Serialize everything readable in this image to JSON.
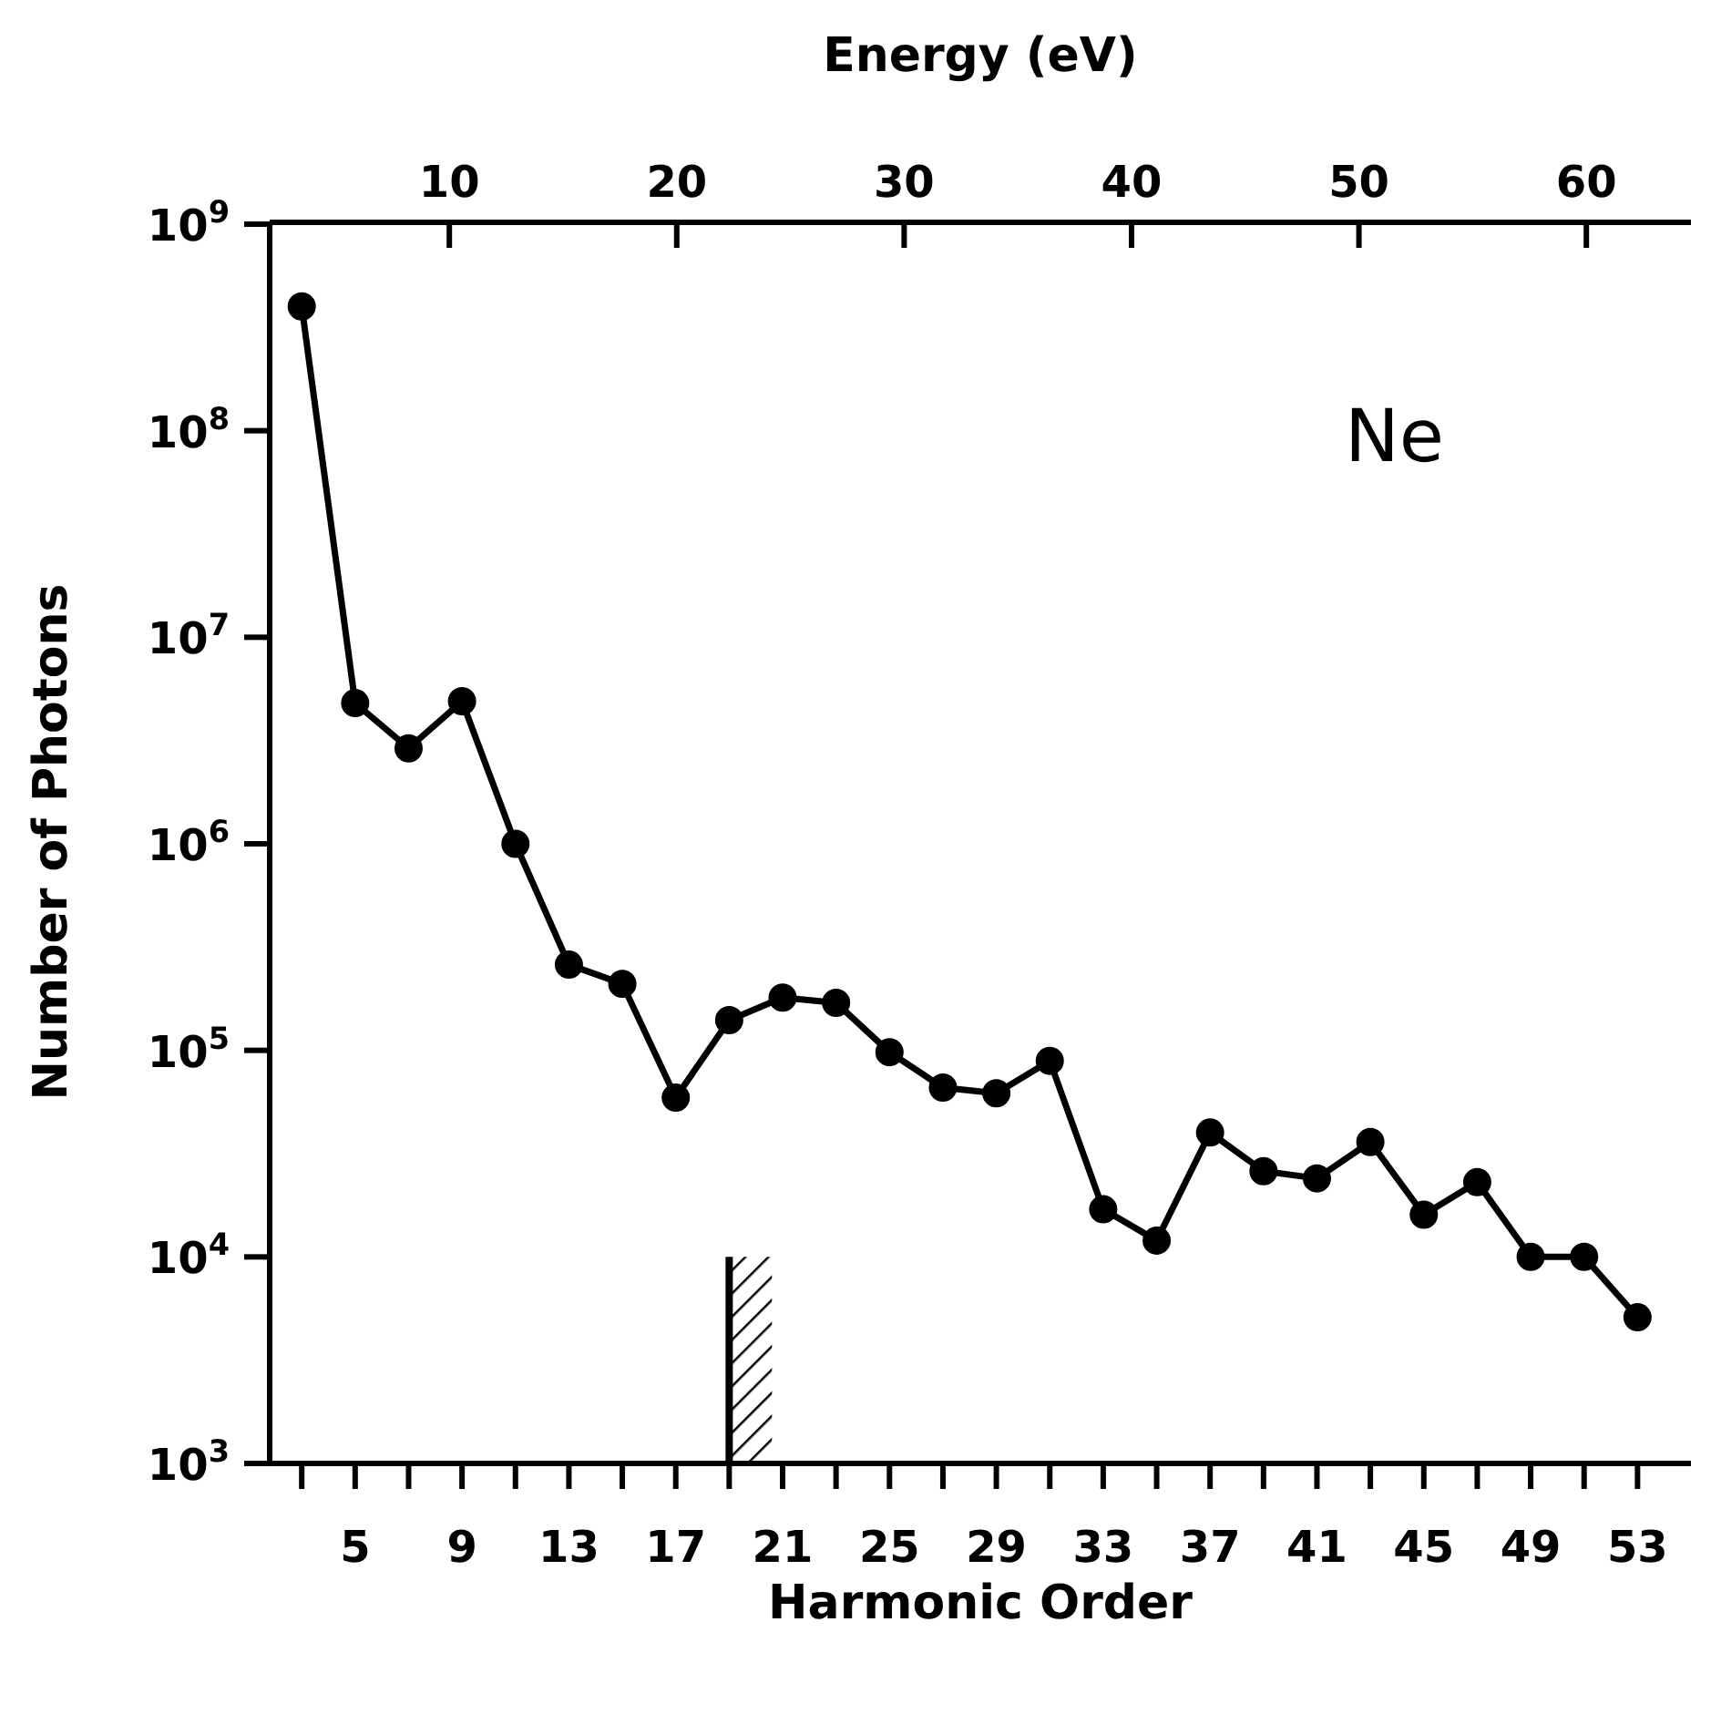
{
  "chart_data": {
    "type": "line",
    "xlabel": "Harmonic Order",
    "ylabel": "Number of Photons",
    "x2label": "Energy (eV)",
    "annotations": [
      "Ne"
    ],
    "x": [
      3,
      5,
      7,
      9,
      11,
      13,
      15,
      17,
      19,
      21,
      23,
      25,
      27,
      29,
      31,
      33,
      35,
      37,
      39,
      41,
      43,
      45,
      47,
      49,
      51,
      53
    ],
    "series": [
      {
        "color": "#000000",
        "values": [
          400000000,
          4800000,
          2900000,
          4900000,
          1000000,
          260000,
          210000,
          59000,
          140000,
          180000,
          170000,
          98000,
          66000,
          62000,
          89000,
          17000,
          12000,
          40000,
          26000,
          24000,
          36000,
          16000,
          23000,
          10000,
          10000,
          5100
        ]
      }
    ],
    "xlim": [
      1.8,
      55
    ],
    "xticks": [
      {
        "value": 3,
        "label": null
      },
      5,
      {
        "value": 7,
        "label": null
      },
      9,
      {
        "value": 11,
        "label": null
      },
      13,
      {
        "value": 15,
        "label": null
      },
      17,
      {
        "value": 19,
        "label": null
      },
      21,
      {
        "value": 23,
        "label": null
      },
      25,
      {
        "value": 27,
        "label": null
      },
      29,
      {
        "value": 31,
        "label": null
      },
      33,
      {
        "value": 35,
        "label": null
      },
      37,
      {
        "value": 39,
        "label": null
      },
      41,
      {
        "value": 43,
        "label": null
      },
      45,
      {
        "value": 47,
        "label": null
      },
      49,
      {
        "value": 51,
        "label": null
      },
      53
    ],
    "x2lim": [
      2.1,
      64.6
    ],
    "x2ticks": [
      10,
      20,
      30,
      40,
      50,
      60
    ],
    "ylim": [
      1000,
      1000000000
    ],
    "yticks": [
      {
        "value": 1000,
        "label": "10$^{3}$"
      },
      {
        "value": 10000,
        "label": "10$^{4}$"
      },
      {
        "value": 100000,
        "label": "10$^{5}$"
      },
      {
        "value": 1000000,
        "label": "10$^{6}$"
      },
      {
        "value": 10000000,
        "label": "10$^{7}$"
      },
      {
        "value": 100000000,
        "label": "10$^{8}$"
      },
      {
        "value": 1000000000,
        "label": "10$^{9}$"
      }
    ],
    "log": "y",
    "marker": "circle",
    "line_style": "solid",
    "bands": [
      {
        "axis": "x",
        "from": 19,
        "to": 20.6,
        "color": "#000000"
      }
    ]
  }
}
